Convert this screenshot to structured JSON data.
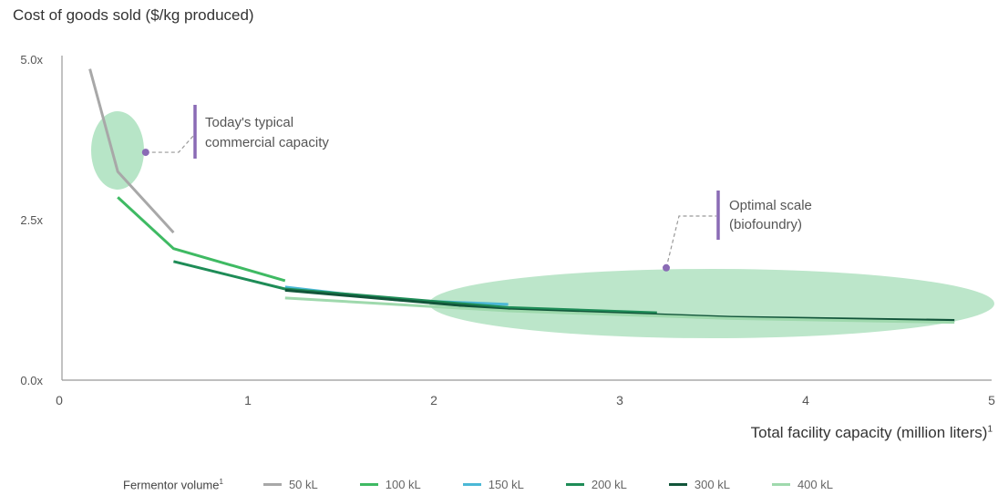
{
  "chart_data": {
    "type": "line",
    "ylabel": "Cost of goods sold ($/kg produced)",
    "xlabel": "Total facility capacity (million liters)",
    "xlabel_sup": "1",
    "xlim": [
      0,
      5
    ],
    "ylim": [
      0,
      5
    ],
    "xticks": [
      0,
      1,
      2,
      3,
      4,
      5
    ],
    "xtick_labels": [
      "0",
      "1",
      "2",
      "3",
      "4",
      "5"
    ],
    "yticks": [
      0,
      2.5,
      5
    ],
    "ytick_labels": [
      "0.0x",
      "2.5x",
      "5.0x"
    ],
    "legend_title": "Fermentor volume",
    "legend_title_sup": "1",
    "legend_position": "bottom",
    "series": [
      {
        "name": "50 kL",
        "color": "#a8a8a8",
        "x": [
          0.15,
          0.3,
          0.6
        ],
        "y": [
          4.85,
          3.25,
          2.3
        ]
      },
      {
        "name": "100 kL",
        "color": "#3fba63",
        "x": [
          0.3,
          0.6,
          1.2
        ],
        "y": [
          2.85,
          2.05,
          1.55
        ]
      },
      {
        "name": "150 kL",
        "color": "#4bb8d6",
        "x": [
          1.2,
          1.8,
          2.4
        ],
        "y": [
          1.45,
          1.25,
          1.18
        ]
      },
      {
        "name": "200 kL",
        "color": "#1e8c57",
        "x": [
          0.6,
          1.2,
          2.4,
          3.2
        ],
        "y": [
          1.85,
          1.42,
          1.13,
          1.05
        ]
      },
      {
        "name": "300 kL",
        "color": "#12553a",
        "x": [
          1.2,
          2.4,
          3.6,
          4.8
        ],
        "y": [
          1.4,
          1.1,
          0.98,
          0.93
        ]
      },
      {
        "name": "400 kL",
        "color": "#9fd9ad",
        "x": [
          1.2,
          2.4,
          3.6,
          4.8
        ],
        "y": [
          1.28,
          1.08,
          0.96,
          0.9
        ]
      }
    ],
    "annotations": [
      {
        "text_lines": [
          "Today's typical",
          "commercial capacity"
        ],
        "point": [
          0.45,
          3.55
        ]
      },
      {
        "text_lines": [
          "Optimal scale",
          "(biofoundry)"
        ],
        "point": [
          3.25,
          1.75
        ]
      }
    ],
    "highlight_color": "#9fdcb4",
    "marker_color": "#8a6bb5",
    "axis_color": "#999999"
  }
}
